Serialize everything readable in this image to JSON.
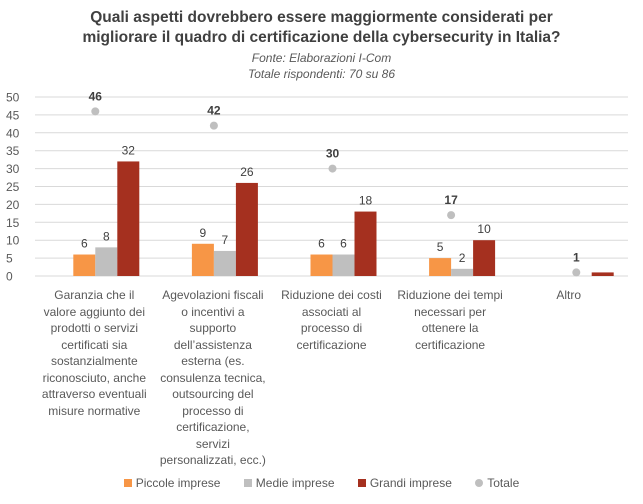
{
  "chart_data": {
    "type": "bar",
    "title": "Quali aspetti dovrebbero essere maggiormente considerati per migliorare il quadro di certificazione della cybersecurity in Italia?",
    "title_lines": [
      "Quali aspetti dovrebbero essere maggiormente considerati per",
      "migliorare il quadro di certificazione della cybersecurity in Italia?"
    ],
    "subtitle_lines": [
      "Fonte: Elaborazioni I-Com",
      "Totale rispondenti: 70 su 86"
    ],
    "xlabel": "",
    "ylabel": "",
    "ylim": [
      0,
      50
    ],
    "yticks": [
      0,
      5,
      10,
      15,
      20,
      25,
      30,
      35,
      40,
      45,
      50
    ],
    "grid": true,
    "legend_position": "bottom",
    "categories": [
      "Garanzia che il valore aggiunto dei prodotti o servizi certificati sia sostanzialmente riconosciuto, anche attraverso eventuali misure normative",
      "Agevolazioni fiscali o incentivi a supporto dell’assistenza esterna (es. consulenza tecnica, outsourcing del processo di certificazione, servizi personalizzati, ecc.)",
      "Riduzione dei costi associati al processo di certificazione",
      "Riduzione dei tempi necessari per ottenere la certificazione",
      "Altro"
    ],
    "category_label_lines": [
      [
        "Garanzia che il",
        "valore aggiunto dei",
        "prodotti o servizi",
        "certificati sia",
        "sostanzialmente",
        "riconosciuto, anche",
        "attraverso eventuali",
        "misure normative"
      ],
      [
        "Agevolazioni fiscali",
        "o incentivi a",
        "supporto",
        "dell’assistenza",
        "esterna (es.",
        "consulenza tecnica,",
        "outsourcing del",
        "processo di",
        "certificazione,",
        "servizi",
        "personalizzati, ecc.)"
      ],
      [
        "Riduzione dei costi",
        "associati al",
        "processo di",
        "certificazione"
      ],
      [
        "Riduzione dei tempi",
        "necessari per",
        "ottenere la",
        "certificazione"
      ],
      [
        "Altro"
      ]
    ],
    "series": [
      {
        "name": "Piccole imprese",
        "kind": "bar",
        "color": "#F79646",
        "values": [
          6,
          9,
          6,
          5,
          0
        ],
        "labels": [
          "6",
          "9",
          "6",
          "5",
          ""
        ]
      },
      {
        "name": "Medie imprese",
        "kind": "bar",
        "color": "#BFBFBF",
        "values": [
          8,
          7,
          6,
          2,
          0
        ],
        "labels": [
          "8",
          "7",
          "6",
          "2",
          ""
        ]
      },
      {
        "name": "Grandi imprese",
        "kind": "bar",
        "color": "#A5301F",
        "values": [
          32,
          26,
          18,
          10,
          1
        ],
        "labels": [
          "32",
          "26",
          "18",
          "10",
          ""
        ]
      },
      {
        "name": "Totale",
        "kind": "dot",
        "color": "#BFBFBF",
        "values": [
          46,
          42,
          30,
          17,
          1
        ],
        "labels": [
          "46",
          "42",
          "30",
          "17",
          "1"
        ]
      }
    ]
  }
}
